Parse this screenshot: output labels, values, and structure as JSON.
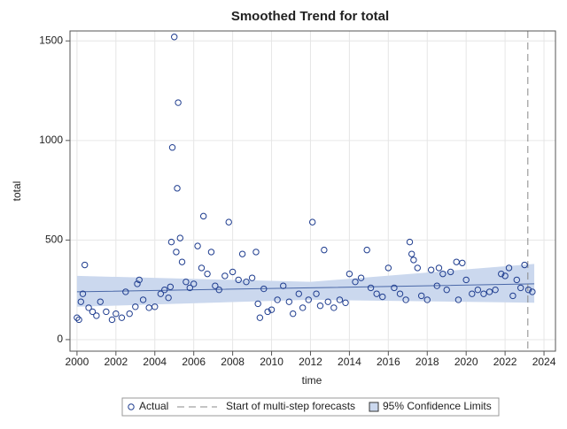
{
  "chart_data": {
    "type": "scatter",
    "title": "Smoothed Trend for total",
    "x_label": "time",
    "y_label": "total",
    "xlim": [
      1999.64,
      2024.59
    ],
    "xticks": [
      2000,
      2002,
      2004,
      2006,
      2008,
      2010,
      2012,
      2014,
      2016,
      2018,
      2020,
      2022,
      2024
    ],
    "ylim": [
      -58,
      1550
    ],
    "yticks": [
      0,
      500,
      1000,
      1500
    ],
    "grid": true,
    "series": [
      {
        "name": "Actual",
        "color": "#1f3d8f",
        "x": [
          2000.0,
          2000.1,
          2000.2,
          2000.3,
          2000.4,
          2000.6,
          2000.8,
          2001.0,
          2001.2,
          2001.5,
          2001.8,
          2002.0,
          2002.3,
          2002.5,
          2002.7,
          2003.0,
          2003.1,
          2003.2,
          2003.4,
          2003.7,
          2004.0,
          2004.3,
          2004.5,
          2004.7,
          2004.8,
          2004.85,
          2004.9,
          2005.0,
          2005.1,
          2005.15,
          2005.2,
          2005.3,
          2005.4,
          2005.6,
          2005.8,
          2006.0,
          2006.2,
          2006.4,
          2006.5,
          2006.7,
          2006.9,
          2007.1,
          2007.3,
          2007.6,
          2007.8,
          2008.0,
          2008.3,
          2008.5,
          2008.7,
          2009.0,
          2009.2,
          2009.3,
          2009.4,
          2009.6,
          2009.8,
          2010.0,
          2010.3,
          2010.6,
          2010.9,
          2011.1,
          2011.4,
          2011.6,
          2011.9,
          2012.1,
          2012.3,
          2012.5,
          2012.7,
          2012.9,
          2013.2,
          2013.5,
          2013.8,
          2014.0,
          2014.3,
          2014.6,
          2014.9,
          2015.1,
          2015.4,
          2015.7,
          2016.0,
          2016.3,
          2016.6,
          2016.9,
          2017.1,
          2017.2,
          2017.3,
          2017.5,
          2017.7,
          2018.0,
          2018.2,
          2018.5,
          2018.6,
          2018.8,
          2019.0,
          2019.2,
          2019.5,
          2019.6,
          2019.8,
          2020.0,
          2020.3,
          2020.6,
          2020.9,
          2021.2,
          2021.5,
          2021.8,
          2022.0,
          2022.2,
          2022.4,
          2022.6,
          2022.8,
          2023.0,
          2023.2,
          2023.4
        ],
        "values": [
          110,
          100,
          190,
          230,
          375,
          160,
          140,
          120,
          190,
          140,
          100,
          130,
          110,
          240,
          130,
          165,
          280,
          300,
          200,
          160,
          165,
          230,
          250,
          210,
          265,
          490,
          965,
          1520,
          440,
          760,
          1190,
          510,
          390,
          290,
          260,
          280,
          470,
          360,
          620,
          330,
          440,
          270,
          250,
          320,
          590,
          340,
          300,
          430,
          290,
          310,
          440,
          180,
          110,
          255,
          140,
          150,
          200,
          270,
          190,
          130,
          230,
          160,
          200,
          590,
          230,
          170,
          450,
          190,
          160,
          200,
          185,
          330,
          290,
          310,
          450,
          260,
          230,
          215,
          360,
          260,
          230,
          200,
          490,
          430,
          400,
          360,
          220,
          200,
          350,
          270,
          360,
          330,
          250,
          340,
          390,
          200,
          385,
          300,
          230,
          250,
          230,
          240,
          250,
          330,
          320,
          360,
          220,
          300,
          260,
          375,
          250,
          240
        ]
      }
    ],
    "trend": {
      "x": [
        2000,
        2012,
        2023.5
      ],
      "values": [
        240,
        260,
        280
      ],
      "lower": [
        165,
        200,
        185
      ],
      "upper": [
        320,
        290,
        380
      ],
      "color": "#4a68a8",
      "band_color": "#cbd8ee"
    },
    "forecast_start": 2023.17,
    "legend": [
      "Actual",
      "Start of multi-step forecasts",
      "95% Confidence Limits"
    ]
  }
}
